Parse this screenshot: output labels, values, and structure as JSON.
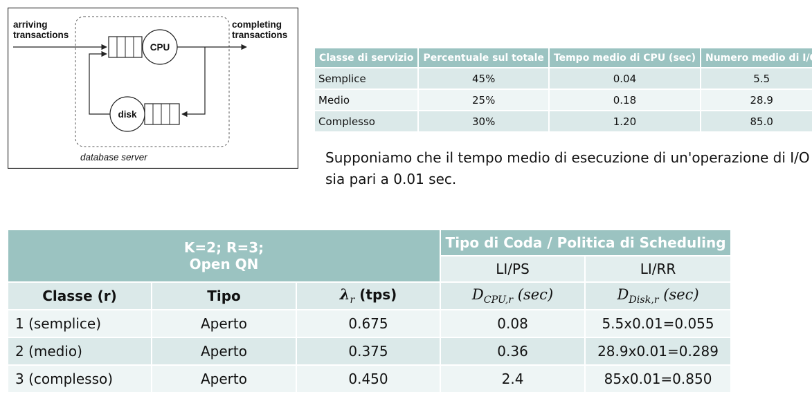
{
  "diagram": {
    "arriving_line1": "arriving",
    "arriving_line2": "transactions",
    "completing_line1": "completing",
    "completing_line2": "transactions",
    "cpu_label": "CPU",
    "disk_label": "disk",
    "server_label": "database server"
  },
  "classes_table": {
    "headers": [
      "Classe di servizio",
      "Percentuale sul totale",
      "Tempo medio di CPU (sec)",
      "Numero medio di I/O"
    ],
    "rows": [
      [
        "Semplice",
        "45%",
        "0.04",
        "5.5"
      ],
      [
        "Medio",
        "25%",
        "0.18",
        "28.9"
      ],
      [
        "Complesso",
        "30%",
        "1.20",
        "85.0"
      ]
    ]
  },
  "note": "Supponiamo che il tempo medio di esecuzione di un'operazione di I/O sia pari a 0.01 sec.",
  "qn_table": {
    "params_line1": "K=2; R=3;",
    "params_line2": "Open QN",
    "queue_header": "Tipo di Coda / Politica di Scheduling",
    "policy_cpu": "LI/PS",
    "policy_disk": "LI/RR",
    "col_class": "Classe (r)",
    "col_type": "Tipo",
    "col_lambda_sym": "λ",
    "col_lambda_sub": "r",
    "col_lambda_unit": " (tps)",
    "col_dcpu_sym": "D",
    "col_dcpu_sub": "CPU,r",
    "col_dcpu_unit": " (sec)",
    "col_ddisk_sym": "D",
    "col_ddisk_sub": "Disk,r",
    "col_ddisk_unit": " (sec)",
    "rows": [
      [
        "1 (semplice)",
        "Aperto",
        "0.675",
        "0.08",
        "5.5x0.01=0.055"
      ],
      [
        "2 (medio)",
        "Aperto",
        "0.375",
        "0.36",
        "28.9x0.01=0.289"
      ],
      [
        "3 (complesso)",
        "Aperto",
        "0.450",
        "2.4",
        "85x0.01=0.850"
      ]
    ]
  }
}
